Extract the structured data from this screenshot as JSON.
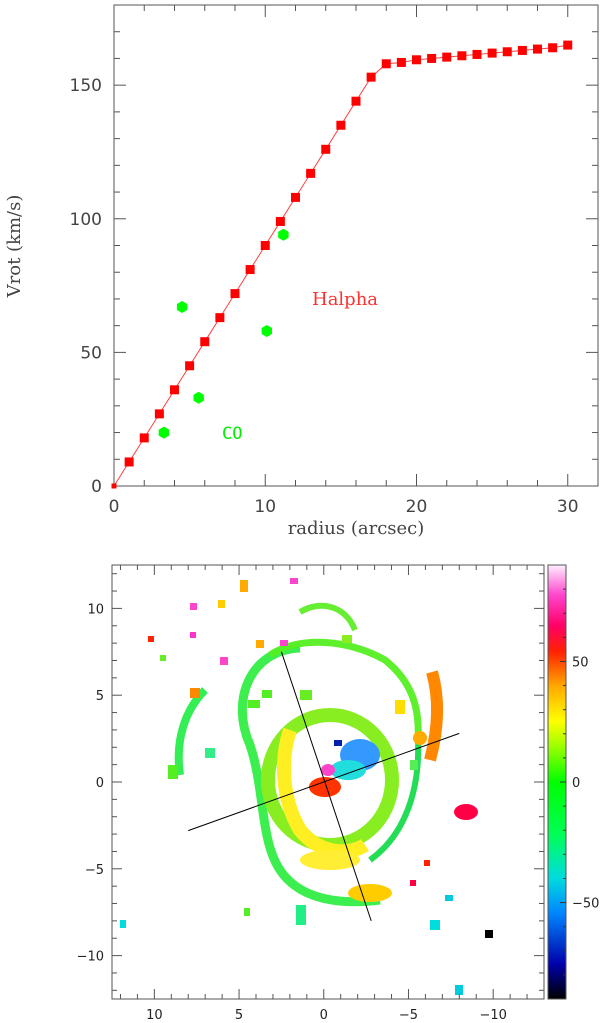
{
  "chart_data": [
    {
      "type": "line",
      "xlabel": "radius (arcsec)",
      "ylabel": "Vrot (km/s)",
      "xlim": [
        0,
        32
      ],
      "ylim": [
        0,
        180
      ],
      "xticks": [
        "0",
        "10",
        "20",
        "30"
      ],
      "yticks": [
        "0",
        "50",
        "100",
        "150"
      ],
      "series": [
        {
          "name": "Halpha",
          "color": "#ff0000",
          "marker": "square",
          "x": [
            0,
            1,
            2,
            3,
            4,
            5,
            6,
            7,
            8,
            9,
            10,
            11,
            12,
            13,
            14,
            15,
            16,
            17,
            18,
            19,
            20,
            21,
            22,
            23,
            24,
            25,
            26,
            27,
            28,
            29,
            30
          ],
          "y": [
            0,
            9,
            18,
            27,
            36,
            45,
            54,
            63,
            72,
            81,
            90,
            99,
            108,
            117,
            126,
            135,
            144,
            153,
            158,
            158.5,
            159.5,
            160,
            160.5,
            161,
            161.5,
            162,
            162.5,
            163,
            163.5,
            164,
            165
          ]
        },
        {
          "name": "CO",
          "color": "#00ff00",
          "marker": "hexagon",
          "x": [
            3.3,
            4.5,
            5.6,
            10.1,
            11.2
          ],
          "y": [
            20,
            67,
            33,
            58,
            94
          ]
        }
      ],
      "annotations": [
        {
          "text": "Halpha",
          "color": "#ff3030",
          "x": 15.5,
          "y": 70
        },
        {
          "text": "CO",
          "color": "#00ff00",
          "x": 8,
          "y": 20
        }
      ]
    },
    {
      "type": "heatmap",
      "title": "",
      "xlim": [
        12.5,
        -13
      ],
      "ylim": [
        -12.5,
        12.5
      ],
      "xticks": [
        "10",
        "5",
        "0",
        "−5",
        "−10"
      ],
      "yticks": [
        "10",
        "5",
        "0",
        "−5",
        "−10"
      ],
      "colorbar": {
        "range": [
          -90,
          90
        ],
        "ticks": [
          "50",
          "0",
          "−50"
        ],
        "colors": [
          "#000000",
          "#0000cc",
          "#0099ff",
          "#00e5e5",
          "#00ff44",
          "#88ff00",
          "#ffff00",
          "#ffaa00",
          "#ff5500",
          "#ff0000",
          "#ff0088",
          "#ff44cc",
          "#ffccff"
        ]
      },
      "axes_lines": [
        {
          "from": [
            2.5,
            7.5
          ],
          "to": [
            -2.8,
            -8
          ]
        },
        {
          "from": [
            8,
            -2.8
          ],
          "to": [
            -8,
            2.8
          ]
        }
      ]
    }
  ]
}
